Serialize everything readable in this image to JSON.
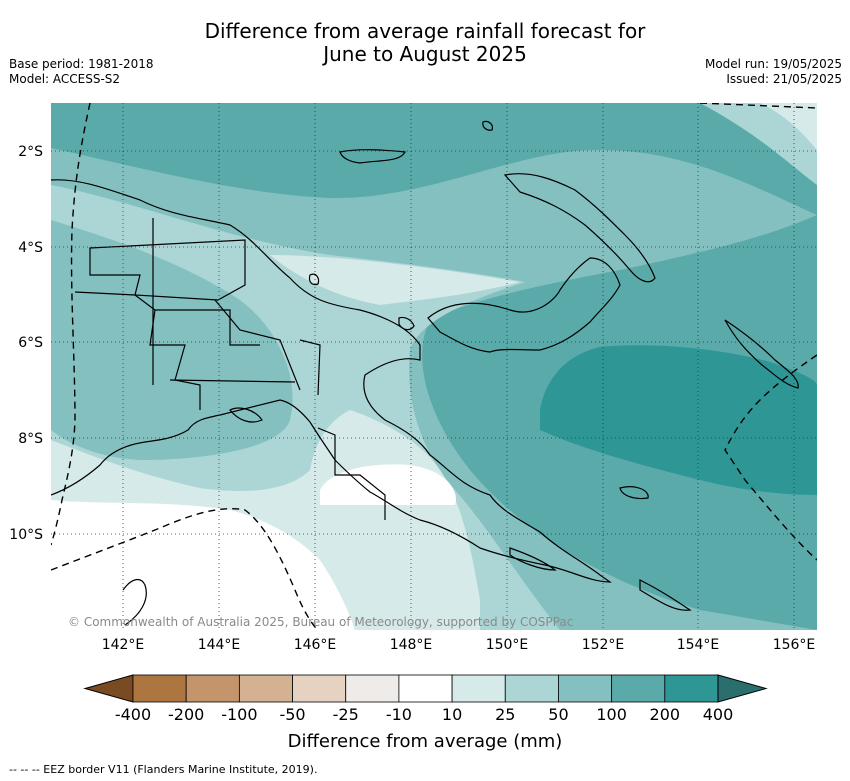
{
  "title_line1": "Difference from average rainfall forecast for",
  "title_line2": "June to August 2025",
  "base_period": "Base period: 1981-2018",
  "model": "Model: ACCESS-S2",
  "model_run": "Model run: 19/05/2025",
  "issued": "Issued: 21/05/2025",
  "credit": "© Commonwealth of Australia 2025, Bureau of Meteorology, supported by COSPPac",
  "lat_labels": [
    "2°S",
    "4°S",
    "6°S",
    "8°S",
    "10°S"
  ],
  "lon_labels": [
    "142°E",
    "144°E",
    "146°E",
    "148°E",
    "150°E",
    "152°E",
    "154°E",
    "156°E"
  ],
  "colorbar": {
    "title": "Difference from average (mm)",
    "labels": [
      "-400",
      "-200",
      "-100",
      "-50",
      "-25",
      "-10",
      "10",
      "25",
      "50",
      "100",
      "200",
      "400"
    ],
    "colors": [
      "#7a4a22",
      "#ad7640",
      "#c4956a",
      "#d4b191",
      "#e6d2c0",
      "#eeebe8",
      "#ffffff",
      "#d6eae9",
      "#acd5d5",
      "#85c0c0",
      "#5aaaaa",
      "#2f9696",
      "#2a6e6e"
    ]
  },
  "eez_note": "-- -- -- EEZ border V11 (Flanders Marine Institute, 2019)."
}
